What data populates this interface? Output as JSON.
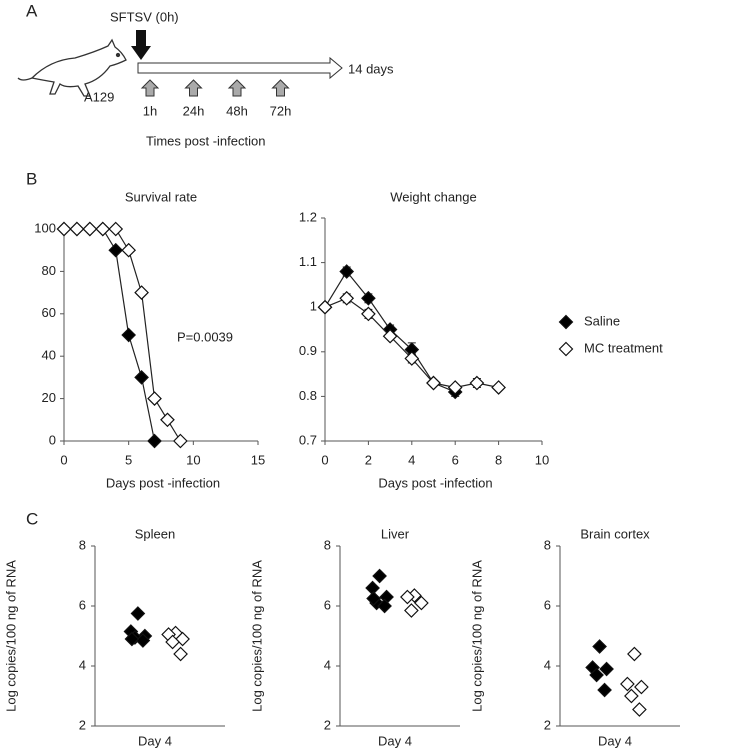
{
  "panel_a": {
    "label": "A",
    "virus": "SFTSV (0h)",
    "end": "14 days",
    "mouse": "A129",
    "times": [
      "1h",
      "24h",
      "48h",
      "72h"
    ],
    "axis_label": "Times post -infection"
  },
  "panel_b_label": "B",
  "panel_c_label": "C",
  "chart_data": [
    {
      "type": "line",
      "title": "Survival  rate",
      "xlabel": "Days post -infection",
      "xlim": [
        0,
        15
      ],
      "xticks": [
        0,
        5,
        10,
        15
      ],
      "ylim": [
        0,
        100
      ],
      "yticks": [
        0,
        20,
        40,
        60,
        80,
        100
      ],
      "annotation": "P=0.0039",
      "series": [
        {
          "name": "Saline",
          "color": "#000000",
          "x": [
            0,
            1,
            2,
            3,
            4,
            5,
            6,
            7
          ],
          "values": [
            100,
            100,
            100,
            100,
            90,
            50,
            30,
            0
          ]
        },
        {
          "name": "MC treatment",
          "color": "#ffffff",
          "x": [
            0,
            1,
            2,
            3,
            4,
            5,
            6,
            7,
            8,
            9
          ],
          "values": [
            100,
            100,
            100,
            100,
            100,
            90,
            70,
            20,
            10,
            0
          ]
        }
      ]
    },
    {
      "type": "line",
      "title": "Weight change",
      "xlabel": "Days post -infection",
      "xlim": [
        0,
        10
      ],
      "xticks": [
        0,
        2,
        4,
        6,
        8,
        10
      ],
      "ylim": [
        0.7,
        1.2
      ],
      "yticks": [
        0.7,
        0.8,
        0.9,
        1,
        1.1,
        1.2
      ],
      "legend": "right",
      "series": [
        {
          "name": "Saline",
          "color": "#000000",
          "x": [
            0,
            1,
            2,
            3,
            4,
            5,
            6
          ],
          "values": [
            1,
            1.08,
            1.02,
            0.95,
            0.905,
            0.83,
            0.81
          ],
          "errors": [
            0,
            0.01,
            0.01,
            0.01,
            0.015,
            0.005,
            0.01
          ]
        },
        {
          "name": "MC treatment",
          "color": "#ffffff",
          "x": [
            0,
            1,
            2,
            3,
            4,
            5,
            6,
            7,
            8
          ],
          "values": [
            1,
            1.02,
            0.985,
            0.935,
            0.885,
            0.83,
            0.82,
            0.83,
            0.82
          ],
          "errors": [
            0,
            0.01,
            0.01,
            0.005,
            0.01,
            0.005,
            0.005,
            0.01,
            0
          ]
        }
      ]
    },
    {
      "type": "strip",
      "title": "Spleen",
      "xlabel": "Day 4",
      "ylabel": "Log copies/100  ng of RNA",
      "ylim": [
        2,
        8
      ],
      "yticks": [
        2,
        4,
        6,
        8
      ],
      "series": [
        {
          "color": "#000000",
          "values": [
            5.75,
            5.15,
            5.0,
            4.95,
            4.85,
            4.9
          ]
        },
        {
          "color": "#ffffff",
          "values": [
            5.1,
            5.05,
            4.9,
            4.8,
            4.4
          ]
        }
      ]
    },
    {
      "type": "strip",
      "title": "Liver",
      "xlabel": "Day 4",
      "ylabel": "Log copies/100  ng of RNA",
      "ylim": [
        2,
        8
      ],
      "yticks": [
        2,
        4,
        6,
        8
      ],
      "series": [
        {
          "color": "#000000",
          "values": [
            7.0,
            6.6,
            6.3,
            6.1,
            6.0,
            6.25
          ]
        },
        {
          "color": "#ffffff",
          "values": [
            6.35,
            6.3,
            6.1,
            5.85
          ]
        }
      ]
    },
    {
      "type": "strip",
      "title": "Brain cortex",
      "xlabel": "Day 4",
      "ylabel": "Log copies/100  ng of RNA",
      "ylim": [
        2,
        8
      ],
      "yticks": [
        2,
        4,
        6,
        8
      ],
      "series": [
        {
          "color": "#000000",
          "values": [
            4.65,
            3.95,
            3.9,
            3.7,
            3.2
          ]
        },
        {
          "color": "#ffffff",
          "values": [
            4.4,
            3.4,
            3.3,
            3.0,
            2.55
          ]
        }
      ]
    }
  ]
}
